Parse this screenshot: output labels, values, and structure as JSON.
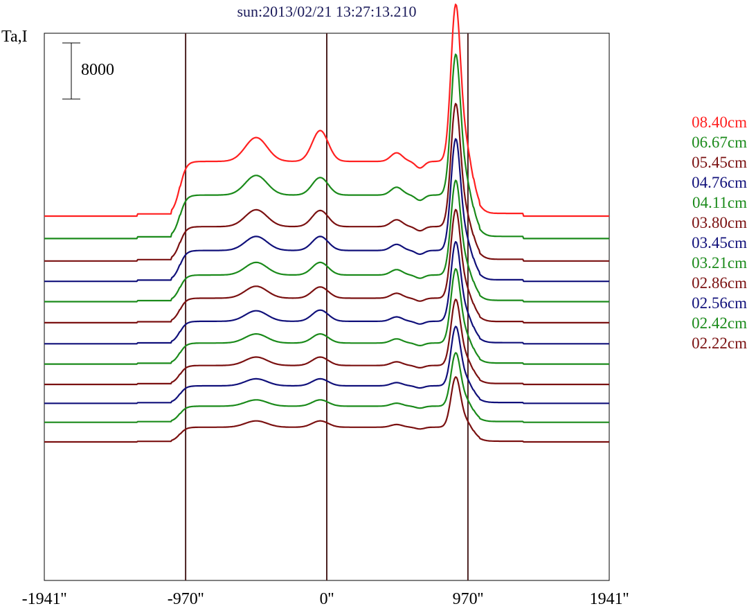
{
  "chart_data": {
    "type": "line",
    "title": "sun:2013/02/21 13:27:13.210",
    "ylabel": "Ta,I",
    "scale_bar": "8000",
    "x_ticks": [
      "-1941''",
      "-970''",
      "0''",
      "970''",
      "1941''"
    ],
    "x_tick_values": [
      -1941,
      -970,
      0,
      970,
      1941
    ],
    "xlim": [
      -1941,
      1941
    ],
    "vertical_lines_at": [
      -970,
      0,
      970
    ],
    "legend_placement": "right",
    "series": [
      {
        "name": "08.40cm",
        "color": "#ff2020",
        "offset": 0,
        "disk": 7800,
        "west": 11200,
        "center": 12200,
        "east_bright": 3500,
        "limb_peak": 28500,
        "limb_shoulder": 11000
      },
      {
        "name": "06.67cm",
        "color": "#1a8a1a",
        "offset": -3200,
        "disk": 6200,
        "west": 9000,
        "center": 8700,
        "east_bright": 3200,
        "limb_peak": 24800,
        "limb_shoulder": 9500
      },
      {
        "name": "05.45cm",
        "color": "#7a1010",
        "offset": -6400,
        "disk": 4900,
        "west": 7300,
        "center": 7200,
        "east_bright": 2800,
        "limb_peak": 21200,
        "limb_shoulder": 8000
      },
      {
        "name": "04.76cm",
        "color": "#10107a",
        "offset": -9300,
        "disk": 4400,
        "west": 6400,
        "center": 6400,
        "east_bright": 2500,
        "limb_peak": 19200,
        "limb_shoulder": 7200
      },
      {
        "name": "04.11cm",
        "color": "#1a8a1a",
        "offset": -12200,
        "disk": 3800,
        "west": 5600,
        "center": 5600,
        "east_bright": 2200,
        "limb_peak": 16300,
        "limb_shoulder": 6400
      },
      {
        "name": "03.80cm",
        "color": "#7a1010",
        "offset": -15200,
        "disk": 3500,
        "west": 5200,
        "center": 5100,
        "east_bright": 2000,
        "limb_peak": 15200,
        "limb_shoulder": 6000
      },
      {
        "name": "03.45cm",
        "color": "#10107a",
        "offset": -18200,
        "disk": 3200,
        "west": 4700,
        "center": 4800,
        "east_bright": 1800,
        "limb_peak": 13700,
        "limb_shoulder": 5400
      },
      {
        "name": "03.21cm",
        "color": "#1a8a1a",
        "offset": -21100,
        "disk": 3000,
        "west": 4300,
        "center": 4300,
        "east_bright": 1700,
        "limb_peak": 12800,
        "limb_shoulder": 5000
      },
      {
        "name": "02.86cm",
        "color": "#7a1010",
        "offset": -24000,
        "disk": 2700,
        "west": 3900,
        "center": 3900,
        "east_bright": 1500,
        "limb_peak": 11400,
        "limb_shoulder": 4600
      },
      {
        "name": "02.56cm",
        "color": "#10107a",
        "offset": -26700,
        "disk": 2500,
        "west": 3500,
        "center": 3500,
        "east_bright": 1300,
        "limb_peak": 10300,
        "limb_shoulder": 4200
      },
      {
        "name": "02.42cm",
        "color": "#1a8a1a",
        "offset": -29400,
        "disk": 2300,
        "west": 3200,
        "center": 3200,
        "east_bright": 1200,
        "limb_peak": 9300,
        "limb_shoulder": 3900
      },
      {
        "name": "02.22cm",
        "color": "#7a1010",
        "offset": -32200,
        "disk": 2100,
        "west": 3000,
        "center": 3000,
        "east_bright": 1100,
        "limb_peak": 8700,
        "limb_shoulder": 3600
      }
    ]
  }
}
